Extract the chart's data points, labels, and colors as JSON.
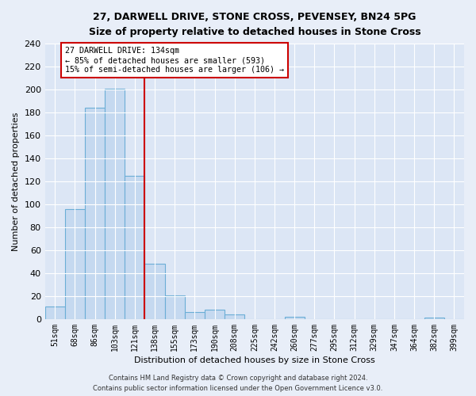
{
  "title1": "27, DARWELL DRIVE, STONE CROSS, PEVENSEY, BN24 5PG",
  "title2": "Size of property relative to detached houses in Stone Cross",
  "xlabel": "Distribution of detached houses by size in Stone Cross",
  "ylabel": "Number of detached properties",
  "bin_labels": [
    "51sqm",
    "68sqm",
    "86sqm",
    "103sqm",
    "121sqm",
    "138sqm",
    "155sqm",
    "173sqm",
    "190sqm",
    "208sqm",
    "225sqm",
    "242sqm",
    "260sqm",
    "277sqm",
    "295sqm",
    "312sqm",
    "329sqm",
    "347sqm",
    "364sqm",
    "382sqm",
    "399sqm"
  ],
  "bar_heights": [
    11,
    96,
    184,
    201,
    125,
    48,
    21,
    6,
    8,
    4,
    0,
    0,
    2,
    0,
    0,
    0,
    0,
    0,
    0,
    1,
    0
  ],
  "bar_color": "#c5d9f0",
  "bar_edge_color": "#6baed6",
  "vline_color": "#cc0000",
  "annotation_text": "27 DARWELL DRIVE: 134sqm\n← 85% of detached houses are smaller (593)\n15% of semi-detached houses are larger (106) →",
  "annotation_box_color": "#ffffff",
  "annotation_box_edge": "#cc0000",
  "ylim_max": 240,
  "yticks": [
    0,
    20,
    40,
    60,
    80,
    100,
    120,
    140,
    160,
    180,
    200,
    220,
    240
  ],
  "footer1": "Contains HM Land Registry data © Crown copyright and database right 2024.",
  "footer2": "Contains public sector information licensed under the Open Government Licence v3.0.",
  "background_color": "#e8eef8",
  "grid_color": "#ffffff",
  "plot_bg_color": "#dce6f5"
}
